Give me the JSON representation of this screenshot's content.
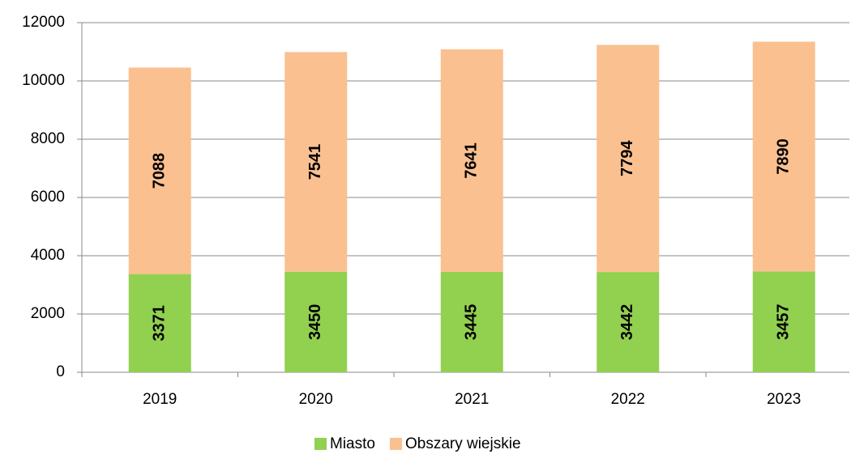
{
  "chart_data": {
    "type": "stacked_bar",
    "categories": [
      "2019",
      "2020",
      "2021",
      "2022",
      "2023"
    ],
    "series": [
      {
        "name": "Miasto",
        "color": "#92d050",
        "values": [
          3371,
          3450,
          3445,
          3442,
          3457
        ]
      },
      {
        "name": "Obszary wiejskie",
        "color": "#fac090",
        "values": [
          7088,
          7541,
          7641,
          7794,
          7890
        ]
      }
    ],
    "ylim": [
      0,
      12000
    ],
    "yticks": [
      0,
      2000,
      4000,
      6000,
      8000,
      10000,
      12000
    ],
    "grid": true,
    "legend": "bottom"
  }
}
